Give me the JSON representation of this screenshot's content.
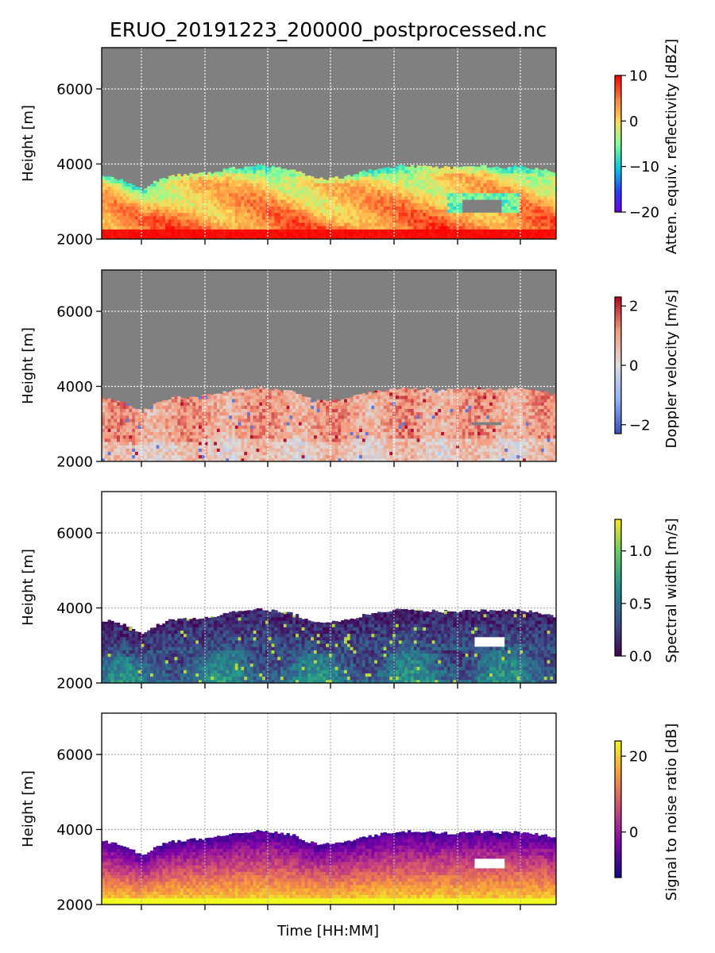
{
  "figure": {
    "title": "ERUO_20191223_200000_postprocessed.nc",
    "xlabel": "Time [HH:MM]"
  },
  "chart_data": [
    {
      "type": "heatmap",
      "variable": "reflectivity",
      "ylabel": "Height [m]",
      "ylim": [
        2000,
        7100
      ],
      "yticks": [
        2000,
        4000,
        6000
      ],
      "grid": true,
      "background": "#808080",
      "colorbar": {
        "label": "Atten. equiv. reflectivity [dBZ]",
        "range": [
          -20,
          10
        ],
        "ticks": [
          -20,
          -10,
          0,
          10
        ],
        "tick_labels": [
          "−20",
          "−10",
          "0",
          "10"
        ],
        "colormap": "jet"
      },
      "echo_top_profile": [
        [
          0,
          3680
        ],
        [
          0.03,
          3630
        ],
        [
          0.06,
          3500
        ],
        [
          0.09,
          3320
        ],
        [
          0.12,
          3540
        ],
        [
          0.15,
          3670
        ],
        [
          0.18,
          3720
        ],
        [
          0.22,
          3740
        ],
        [
          0.25,
          3780
        ],
        [
          0.28,
          3880
        ],
        [
          0.31,
          3920
        ],
        [
          0.35,
          3960
        ],
        [
          0.38,
          3920
        ],
        [
          0.42,
          3860
        ],
        [
          0.46,
          3650
        ],
        [
          0.49,
          3600
        ],
        [
          0.53,
          3650
        ],
        [
          0.58,
          3810
        ],
        [
          0.62,
          3880
        ],
        [
          0.66,
          3960
        ],
        [
          0.7,
          3930
        ],
        [
          0.73,
          3920
        ],
        [
          0.77,
          3900
        ],
        [
          0.81,
          3950
        ],
        [
          0.85,
          3930
        ],
        [
          0.88,
          3920
        ],
        [
          0.92,
          3940
        ],
        [
          0.96,
          3880
        ],
        [
          1.0,
          3780
        ]
      ],
      "gaps": [
        {
          "t": [
            0.79,
            0.88
          ],
          "h": [
            2650,
            3050
          ]
        }
      ]
    },
    {
      "type": "heatmap",
      "variable": "doppler_velocity",
      "ylabel": "Height [m]",
      "ylim": [
        2000,
        7100
      ],
      "yticks": [
        2000,
        4000,
        6000
      ],
      "grid": true,
      "background": "#808080",
      "colorbar": {
        "label": "Doppler velocity [m/s]",
        "range": [
          -2.3,
          2.3
        ],
        "ticks": [
          -2,
          0,
          2
        ],
        "tick_labels": [
          "−2",
          "0",
          "2"
        ],
        "colormap": "coolwarm"
      },
      "echo_top_profile": [
        [
          0,
          3680
        ],
        [
          0.03,
          3630
        ],
        [
          0.06,
          3500
        ],
        [
          0.09,
          3320
        ],
        [
          0.12,
          3540
        ],
        [
          0.15,
          3670
        ],
        [
          0.18,
          3720
        ],
        [
          0.22,
          3740
        ],
        [
          0.25,
          3780
        ],
        [
          0.28,
          3880
        ],
        [
          0.31,
          3920
        ],
        [
          0.35,
          3960
        ],
        [
          0.38,
          3920
        ],
        [
          0.42,
          3860
        ],
        [
          0.46,
          3650
        ],
        [
          0.49,
          3600
        ],
        [
          0.53,
          3650
        ],
        [
          0.58,
          3810
        ],
        [
          0.62,
          3880
        ],
        [
          0.66,
          3960
        ],
        [
          0.7,
          3930
        ],
        [
          0.73,
          3920
        ],
        [
          0.77,
          3900
        ],
        [
          0.81,
          3950
        ],
        [
          0.85,
          3930
        ],
        [
          0.88,
          3920
        ],
        [
          0.92,
          3940
        ],
        [
          0.96,
          3880
        ],
        [
          1.0,
          3780
        ]
      ],
      "gaps": [
        {
          "t": [
            0.81,
            0.88
          ],
          "h": [
            2900,
            3050
          ]
        }
      ]
    },
    {
      "type": "heatmap",
      "variable": "spectral_width",
      "ylabel": "Height [m]",
      "ylim": [
        2000,
        7100
      ],
      "yticks": [
        2000,
        4000,
        6000
      ],
      "grid": true,
      "background": "#ffffff",
      "colorbar": {
        "label": "Spectral width [m/s]",
        "range": [
          0,
          1.3
        ],
        "ticks": [
          0,
          0.5,
          1.0
        ],
        "tick_labels": [
          "0.0",
          "0.5",
          "1.0"
        ],
        "colormap": "viridis"
      },
      "echo_top_profile": [
        [
          0,
          3680
        ],
        [
          0.03,
          3630
        ],
        [
          0.06,
          3500
        ],
        [
          0.09,
          3320
        ],
        [
          0.12,
          3540
        ],
        [
          0.15,
          3670
        ],
        [
          0.18,
          3720
        ],
        [
          0.22,
          3740
        ],
        [
          0.25,
          3780
        ],
        [
          0.28,
          3880
        ],
        [
          0.31,
          3920
        ],
        [
          0.35,
          3960
        ],
        [
          0.38,
          3920
        ],
        [
          0.42,
          3860
        ],
        [
          0.46,
          3650
        ],
        [
          0.49,
          3600
        ],
        [
          0.53,
          3650
        ],
        [
          0.58,
          3810
        ],
        [
          0.62,
          3880
        ],
        [
          0.66,
          3960
        ],
        [
          0.7,
          3930
        ],
        [
          0.73,
          3920
        ],
        [
          0.77,
          3900
        ],
        [
          0.81,
          3950
        ],
        [
          0.85,
          3930
        ],
        [
          0.88,
          3920
        ],
        [
          0.92,
          3940
        ],
        [
          0.96,
          3880
        ],
        [
          1.0,
          3780
        ]
      ],
      "gaps": [
        {
          "t": [
            0.82,
            0.89
          ],
          "h": [
            2900,
            3200
          ]
        }
      ]
    },
    {
      "type": "heatmap",
      "variable": "snr",
      "ylabel": "Height [m]",
      "ylim": [
        2000,
        7100
      ],
      "yticks": [
        2000,
        4000,
        6000
      ],
      "grid": true,
      "background": "#ffffff",
      "colorbar": {
        "label": "Signal to noise ratio [dB]",
        "range": [
          -12,
          24
        ],
        "ticks": [
          0,
          20
        ],
        "tick_labels": [
          "0",
          "20"
        ],
        "colormap": "plasma"
      },
      "echo_top_profile": [
        [
          0,
          3680
        ],
        [
          0.03,
          3630
        ],
        [
          0.06,
          3500
        ],
        [
          0.09,
          3320
        ],
        [
          0.12,
          3540
        ],
        [
          0.15,
          3670
        ],
        [
          0.18,
          3720
        ],
        [
          0.22,
          3740
        ],
        [
          0.25,
          3780
        ],
        [
          0.28,
          3880
        ],
        [
          0.31,
          3920
        ],
        [
          0.35,
          3960
        ],
        [
          0.38,
          3920
        ],
        [
          0.42,
          3860
        ],
        [
          0.46,
          3650
        ],
        [
          0.49,
          3600
        ],
        [
          0.53,
          3650
        ],
        [
          0.58,
          3810
        ],
        [
          0.62,
          3880
        ],
        [
          0.66,
          3960
        ],
        [
          0.7,
          3930
        ],
        [
          0.73,
          3920
        ],
        [
          0.77,
          3900
        ],
        [
          0.81,
          3950
        ],
        [
          0.85,
          3930
        ],
        [
          0.88,
          3920
        ],
        [
          0.92,
          3940
        ],
        [
          0.96,
          3880
        ],
        [
          1.0,
          3780
        ]
      ],
      "gaps": [
        {
          "t": [
            0.82,
            0.89
          ],
          "h": [
            2950,
            3150
          ]
        }
      ]
    }
  ]
}
